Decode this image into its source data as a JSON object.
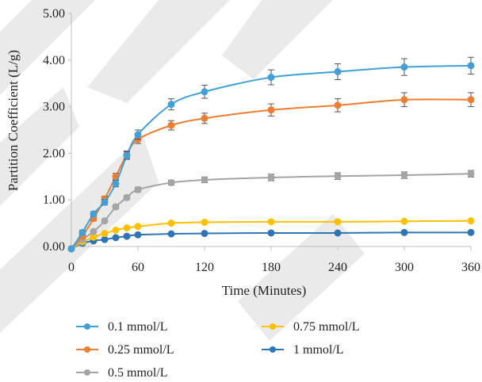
{
  "chart_data": {
    "type": "line",
    "xlabel": "Time (Minutes)",
    "ylabel": "Partition Coefficient (L/g)",
    "xlim": [
      0,
      360
    ],
    "ylim": [
      0,
      5
    ],
    "xticks": [
      0,
      60,
      120,
      180,
      240,
      300,
      360
    ],
    "yticks": [
      0,
      1,
      2,
      3,
      4,
      5
    ],
    "xtick_labels": [
      "0",
      "60",
      "120",
      "180",
      "240",
      "300",
      "360"
    ],
    "ytick_labels": [
      "0.00",
      "1.00",
      "2.00",
      "3.00",
      "4.00",
      "5.00"
    ],
    "grid": false,
    "error_bars": true,
    "legend_position": "bottom",
    "series": [
      {
        "name": "0.1 mmol/L",
        "color": "#41a0d8",
        "x": [
          0,
          10,
          20,
          30,
          40,
          50,
          60,
          90,
          120,
          180,
          240,
          300,
          360
        ],
        "y": [
          -0.05,
          0.3,
          0.7,
          0.95,
          1.35,
          1.95,
          2.4,
          3.05,
          3.32,
          3.63,
          3.75,
          3.85,
          3.88
        ],
        "err": [
          0.02,
          0.05,
          0.05,
          0.06,
          0.07,
          0.08,
          0.1,
          0.12,
          0.14,
          0.16,
          0.17,
          0.18,
          0.18
        ]
      },
      {
        "name": "0.25 mmol/L",
        "color": "#ed7d31",
        "x": [
          0,
          10,
          20,
          30,
          40,
          50,
          60,
          90,
          120,
          180,
          240,
          300,
          360
        ],
        "y": [
          -0.05,
          0.22,
          0.6,
          1.02,
          1.5,
          1.97,
          2.3,
          2.6,
          2.75,
          2.93,
          3.03,
          3.15,
          3.15
        ],
        "err": [
          0.02,
          0.04,
          0.05,
          0.06,
          0.07,
          0.08,
          0.09,
          0.1,
          0.11,
          0.13,
          0.14,
          0.15,
          0.15
        ]
      },
      {
        "name": "0.5 mmol/L",
        "color": "#a5a5a5",
        "x": [
          0,
          10,
          20,
          30,
          40,
          50,
          60,
          90,
          120,
          180,
          240,
          300,
          360
        ],
        "y": [
          -0.05,
          0.15,
          0.32,
          0.55,
          0.85,
          1.05,
          1.22,
          1.37,
          1.43,
          1.48,
          1.51,
          1.53,
          1.56
        ],
        "err": [
          0.01,
          0.02,
          0.03,
          0.03,
          0.04,
          0.04,
          0.05,
          0.05,
          0.06,
          0.07,
          0.07,
          0.07,
          0.07
        ]
      },
      {
        "name": "0.75 mmol/L",
        "color": "#ffc000",
        "x": [
          0,
          10,
          20,
          30,
          40,
          50,
          60,
          90,
          120,
          180,
          240,
          300,
          360
        ],
        "y": [
          -0.05,
          0.1,
          0.2,
          0.28,
          0.35,
          0.4,
          0.43,
          0.5,
          0.52,
          0.53,
          0.53,
          0.54,
          0.55
        ],
        "err": [
          0.01,
          0.01,
          0.01,
          0.02,
          0.02,
          0.02,
          0.02,
          0.02,
          0.02,
          0.02,
          0.02,
          0.02,
          0.02
        ]
      },
      {
        "name": "1 mmol/L",
        "color": "#2e75b6",
        "x": [
          0,
          10,
          20,
          30,
          40,
          50,
          60,
          90,
          120,
          180,
          240,
          300,
          360
        ],
        "y": [
          -0.05,
          0.07,
          0.12,
          0.15,
          0.19,
          0.22,
          0.25,
          0.27,
          0.28,
          0.29,
          0.29,
          0.3,
          0.3
        ],
        "err": [
          0.01,
          0.01,
          0.01,
          0.01,
          0.01,
          0.01,
          0.01,
          0.01,
          0.01,
          0.01,
          0.01,
          0.01,
          0.01
        ]
      }
    ]
  }
}
